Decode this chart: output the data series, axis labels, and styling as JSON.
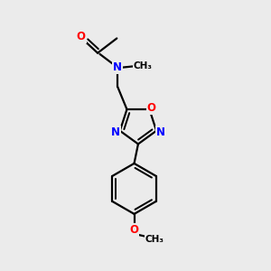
{
  "bg_color": "#ebebeb",
  "bond_color": "#000000",
  "bond_width": 1.6,
  "atom_colors": {
    "O": "#ff0000",
    "N": "#0000ff",
    "C": "#000000"
  },
  "font_size_atom": 8.5,
  "font_size_small": 7.5
}
